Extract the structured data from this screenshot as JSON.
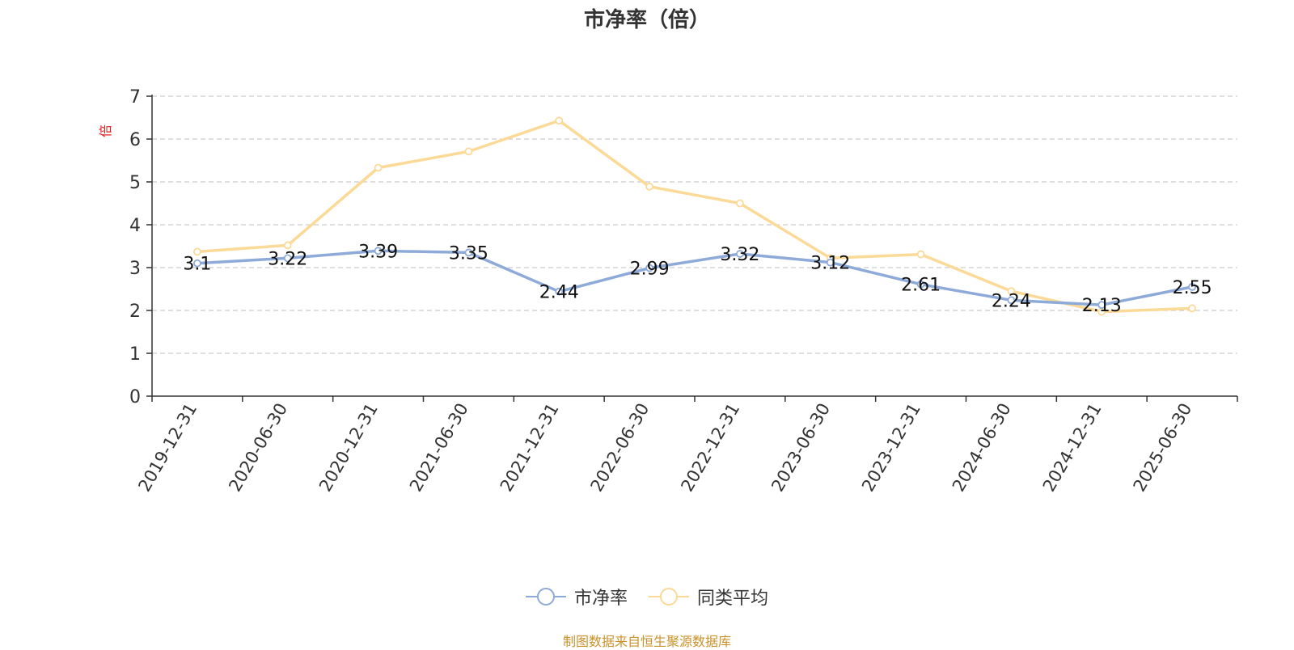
{
  "chart_data": {
    "type": "line",
    "title": "市净率（倍）",
    "ylabel": "倍",
    "xlabel": "",
    "ylim": [
      0,
      7
    ],
    "yticks": [
      0,
      1,
      2,
      3,
      4,
      5,
      6,
      7
    ],
    "grid": true,
    "legend_position": "bottom",
    "categories": [
      "2019-12-31",
      "2020-06-30",
      "2020-12-31",
      "2021-06-30",
      "2021-12-31",
      "2022-06-30",
      "2022-12-31",
      "2023-06-30",
      "2023-12-31",
      "2024-06-30",
      "2024-12-31",
      "2025-06-30"
    ],
    "series": [
      {
        "name": "市净率",
        "color": "#8eaad8",
        "show_labels": true,
        "values": [
          3.1,
          3.22,
          3.39,
          3.35,
          2.44,
          2.99,
          3.32,
          3.12,
          2.61,
          2.24,
          2.13,
          2.55
        ]
      },
      {
        "name": "同类平均",
        "color": "#fbd997",
        "show_labels": false,
        "values": [
          3.37,
          3.52,
          5.33,
          5.71,
          6.43,
          4.89,
          4.5,
          3.22,
          3.31,
          2.45,
          1.97,
          2.05
        ]
      }
    ]
  },
  "footer": {
    "source": "制图数据来自恒生聚源数据库"
  }
}
